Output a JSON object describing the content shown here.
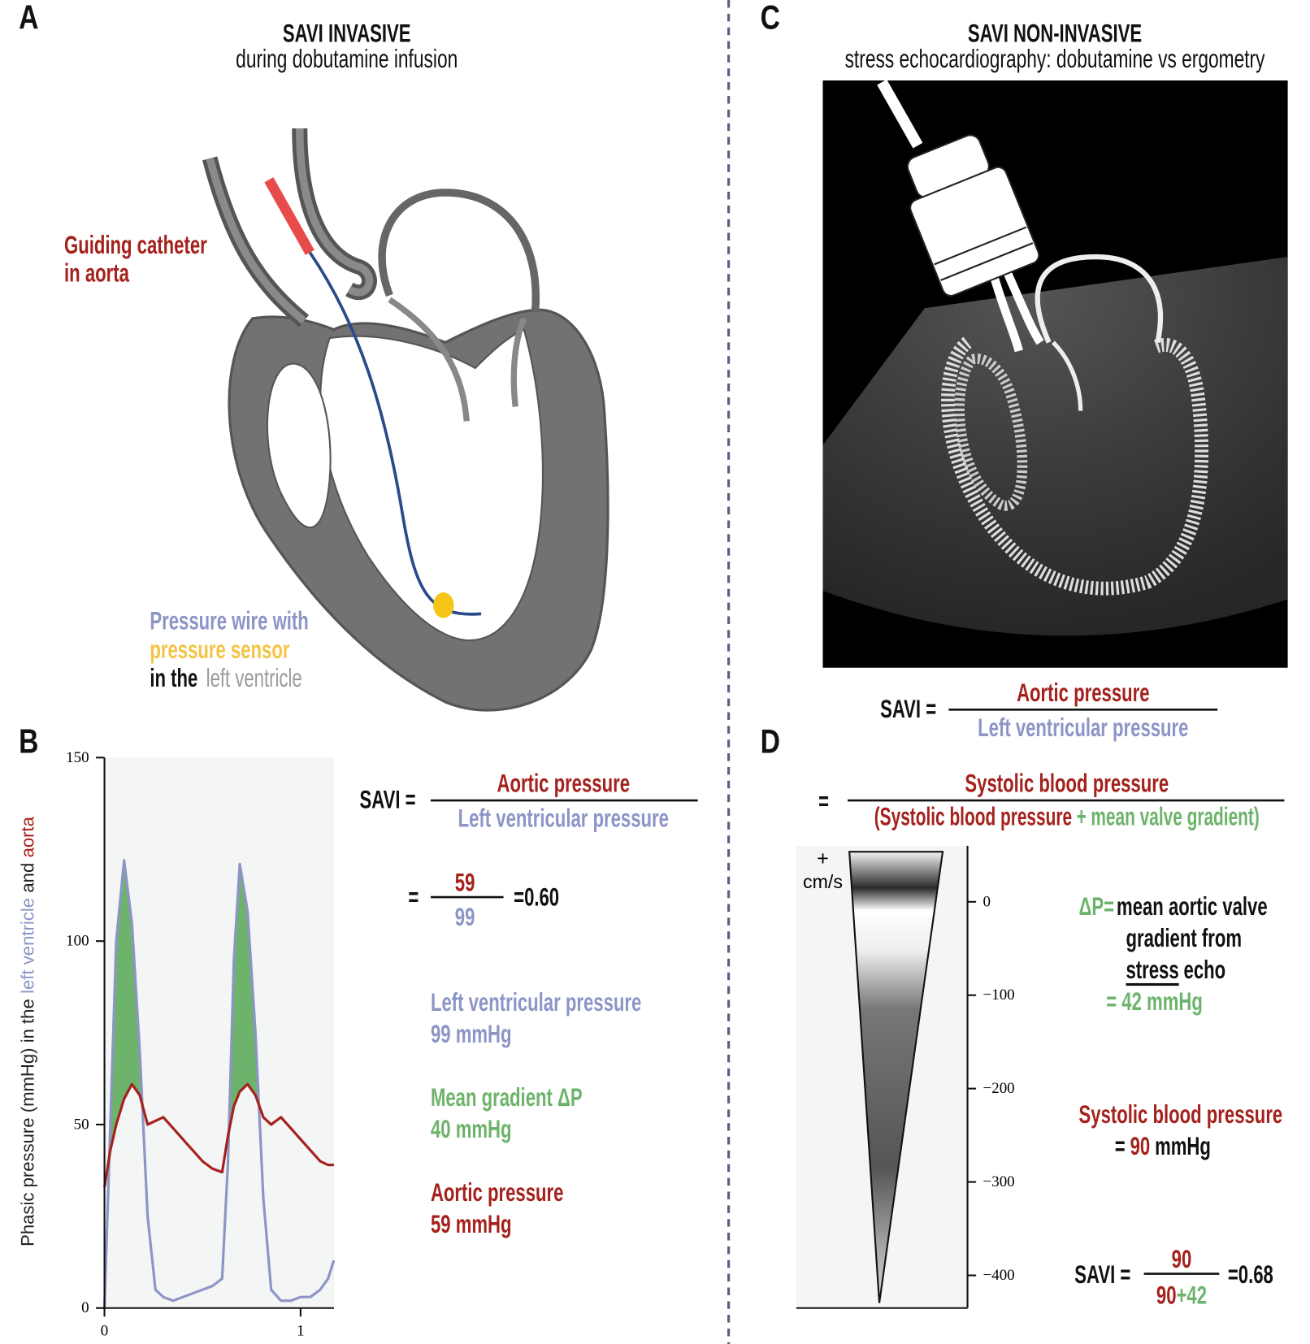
{
  "panel_a": {
    "letter": "A",
    "title": "SAVI INVASIVE",
    "subtitle": "during dobutamine infusion",
    "catheter_label": [
      "Guiding catheter",
      "in aorta"
    ],
    "wire_label": [
      "Pressure wire with",
      "pressure sensor",
      "in the",
      "left ventricle"
    ]
  },
  "panel_b": {
    "letter": "B",
    "formula": {
      "lhs": "SAVI =",
      "numerator": "Aortic pressure",
      "denominator": "Left ventricular pressure"
    },
    "calculation": {
      "equals": "=",
      "numerator": "59",
      "denominator": "99",
      "result": "=0.60"
    },
    "readings": [
      {
        "label": "Left ventricular pressure",
        "value": "99 mmHg"
      },
      {
        "label": "Mean gradient ΔP",
        "value": "40 mmHg"
      },
      {
        "label": "Aortic pressure",
        "value": "59 mmHg"
      }
    ]
  },
  "chart_data": {
    "type": "line",
    "y_label": {
      "prefix": "Phasic pressure (mmHg) in the",
      "join": "and"
    },
    "x": [
      0,
      0.03,
      0.06,
      0.1,
      0.14,
      0.18,
      0.22,
      0.26,
      0.3,
      0.35,
      0.4,
      0.45,
      0.5,
      0.55,
      0.6,
      0.63,
      0.66,
      0.69,
      0.73,
      0.77,
      0.81,
      0.85,
      0.9,
      0.95,
      1.0,
      1.05,
      1.1,
      1.14,
      1.17
    ],
    "xlim": [
      0,
      1.17
    ],
    "xticks": [
      0,
      1
    ],
    "ylim": [
      0,
      150
    ],
    "yticks": [
      0,
      50,
      100,
      150
    ],
    "series": [
      {
        "name": "left ventricle",
        "color": "#8c95c6",
        "values": [
          0,
          50,
          100,
          122,
          105,
          70,
          25,
          5,
          3,
          2,
          3,
          4,
          5,
          6,
          8,
          40,
          95,
          121,
          108,
          75,
          30,
          5,
          2,
          2,
          3,
          3,
          5,
          8,
          13
        ]
      },
      {
        "name": "aorta",
        "color": "#a4211c",
        "values": [
          33,
          43,
          50,
          57,
          61,
          58,
          50,
          51,
          52,
          49,
          46,
          43,
          40,
          38,
          37,
          47,
          55,
          59,
          61,
          58,
          52,
          50,
          52,
          49,
          46,
          43,
          40,
          39,
          39
        ]
      }
    ],
    "gradient_fill": "#6db36b",
    "background": "#f4f5f5"
  },
  "panel_c": {
    "letter": "C",
    "title": "SAVI NON-INVASIVE",
    "subtitle": "stress echocardiography: dobutamine vs ergometry",
    "formula": {
      "lhs": "SAVI =",
      "numerator": "Aortic pressure",
      "denominator": "Left ventricular pressure"
    }
  },
  "panel_d": {
    "letter": "D",
    "formula": {
      "equals": "=",
      "numerator": "Systolic blood pressure",
      "denominator": [
        "(Systolic blood pressure",
        "+",
        "mean valve gradient)"
      ]
    },
    "doppler": {
      "direction": "+",
      "unit": "cm/s",
      "ylim": [
        -435,
        60
      ],
      "yticks": [
        0,
        {
          "value": -100,
          "label": "−100"
        },
        {
          "value": -200,
          "label": "−200"
        },
        {
          "value": -300,
          "label": "−300"
        },
        {
          "value": -400,
          "label": "−400"
        }
      ]
    },
    "gradient_note": {
      "symbol": "ΔP=",
      "lines": [
        "mean aortic valve",
        "gradient from"
      ],
      "underlined": "stress",
      "after": "echo",
      "result": "= 42 mmHg"
    },
    "systolic_note": {
      "label": "Systolic blood pressure",
      "equals": "=",
      "value": "90",
      "unit": "mmHg"
    },
    "savi": {
      "lhs": "SAVI =",
      "numerator": "90",
      "denominator": [
        "90",
        "+42"
      ],
      "result": "=0.68"
    }
  }
}
